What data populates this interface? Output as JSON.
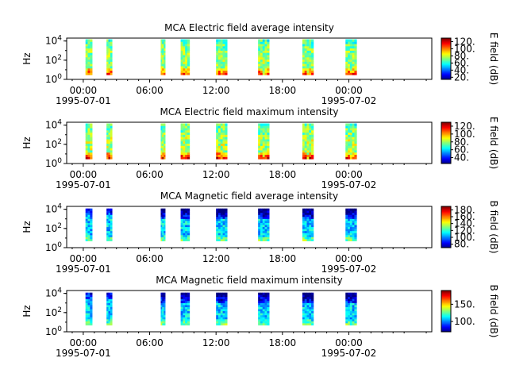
{
  "chart_data": [
    {
      "type": "heatmap",
      "title": "MCA  Electric field average intensity",
      "ylabel": "Hz",
      "yscale": "log",
      "ylim": [
        1,
        20000
      ],
      "yticks": [
        "10^0",
        "10^2",
        "10^4"
      ],
      "xlim_hours": [
        -1.5,
        31.5
      ],
      "xticks": [
        "00:00",
        "06:00",
        "12:00",
        "18:00",
        "00:00"
      ],
      "xdates": [
        "1995-07-01",
        "1995-07-02"
      ],
      "colorbar": {
        "label": "E field (dB)",
        "ticks": [
          20,
          40,
          60,
          80,
          100,
          120
        ],
        "range": [
          14,
          130
        ]
      },
      "freq_range": [
        3,
        15000
      ],
      "base_level": 75,
      "passes": [
        [
          0.2,
          0.8
        ],
        [
          2.1,
          2.6
        ],
        [
          7.0,
          7.4
        ],
        [
          8.8,
          9.6
        ],
        [
          12.0,
          13.0
        ],
        [
          15.8,
          16.8
        ],
        [
          19.8,
          20.8
        ],
        [
          23.7,
          24.7
        ]
      ]
    },
    {
      "type": "heatmap",
      "title": "MCA  Electric field maximum intensity",
      "ylabel": "Hz",
      "yscale": "log",
      "ylim": [
        1,
        20000
      ],
      "yticks": [
        "10^0",
        "10^2",
        "10^4"
      ],
      "xlim_hours": [
        -1.5,
        31.5
      ],
      "xticks": [
        "00:00",
        "06:00",
        "12:00",
        "18:00",
        "00:00"
      ],
      "xdates": [
        "1995-07-01",
        "1995-07-02"
      ],
      "colorbar": {
        "label": "E field (dB)",
        "ticks": [
          40,
          60,
          80,
          100,
          120
        ],
        "range": [
          25,
          130
        ]
      },
      "freq_range": [
        3,
        15000
      ],
      "base_level": 82,
      "passes": [
        [
          0.2,
          0.8
        ],
        [
          2.1,
          2.6
        ],
        [
          7.0,
          7.4
        ],
        [
          8.8,
          9.6
        ],
        [
          12.0,
          13.0
        ],
        [
          15.8,
          16.8
        ],
        [
          19.8,
          20.8
        ],
        [
          23.7,
          24.7
        ]
      ]
    },
    {
      "type": "heatmap",
      "title": "MCA  Magnetic field average intensity",
      "ylabel": "Hz",
      "yscale": "log",
      "ylim": [
        1,
        20000
      ],
      "yticks": [
        "10^0",
        "10^2",
        "10^4"
      ],
      "xlim_hours": [
        -1.5,
        31.5
      ],
      "xticks": [
        "00:00",
        "06:00",
        "12:00",
        "18:00",
        "00:00"
      ],
      "xdates": [
        "1995-07-01",
        "1995-07-02"
      ],
      "colorbar": {
        "label": "B field (dB)",
        "ticks": [
          80,
          100,
          120,
          140,
          160,
          180
        ],
        "range": [
          70,
          190
        ]
      },
      "freq_range": [
        5,
        12000
      ],
      "base_level": 110,
      "passes": [
        [
          0.2,
          0.8
        ],
        [
          2.1,
          2.6
        ],
        [
          7.0,
          7.4
        ],
        [
          8.8,
          9.6
        ],
        [
          12.0,
          13.0
        ],
        [
          15.8,
          16.8
        ],
        [
          19.8,
          20.8
        ],
        [
          23.7,
          24.7
        ]
      ]
    },
    {
      "type": "heatmap",
      "title": "MCA  Magnetic field maximum intensity",
      "ylabel": "Hz",
      "yscale": "log",
      "ylim": [
        1,
        20000
      ],
      "yticks": [
        "10^0",
        "10^2",
        "10^4"
      ],
      "xlim_hours": [
        -1.5,
        31.5
      ],
      "xticks": [
        "00:00",
        "06:00",
        "12:00",
        "18:00",
        "00:00"
      ],
      "xdates": [
        "1995-07-01",
        "1995-07-02"
      ],
      "colorbar": {
        "label": "B field (dB)",
        "ticks": [
          100,
          150
        ],
        "range": [
          70,
          190
        ]
      },
      "freq_range": [
        5,
        12000
      ],
      "base_level": 110,
      "passes": [
        [
          0.2,
          0.8
        ],
        [
          2.1,
          2.6
        ],
        [
          7.0,
          7.4
        ],
        [
          8.8,
          9.6
        ],
        [
          12.0,
          13.0
        ],
        [
          15.8,
          16.8
        ],
        [
          19.8,
          20.8
        ],
        [
          23.7,
          24.7
        ]
      ]
    }
  ]
}
